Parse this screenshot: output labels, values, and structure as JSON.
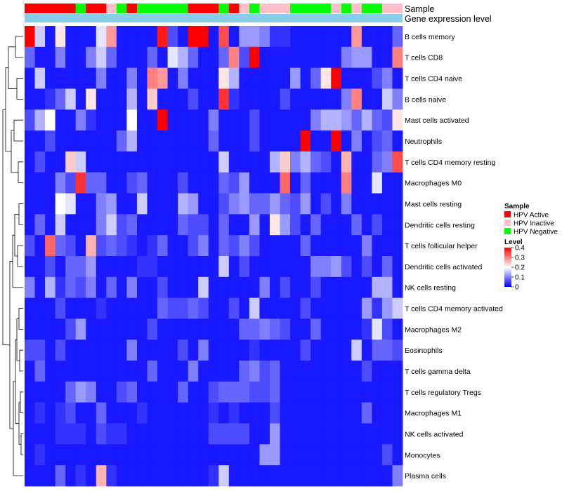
{
  "chart_data": {
    "type": "heatmap",
    "title": "",
    "value_range": [
      0,
      0.4
    ],
    "color_scale": {
      "low": "#0000FF",
      "mid": "#FFFFFF",
      "high": "#FF0000",
      "mid_value": 0.2
    },
    "annotation_tracks": [
      {
        "name": "Sample",
        "label": "Sample"
      },
      {
        "name": "Gene expression level",
        "label": "Gene expression level"
      }
    ],
    "sample_groups": [
      {
        "name": "HPV Active",
        "color": "#FF0000"
      },
      {
        "name": "HPV Inactive",
        "color": "#FFC0CB"
      },
      {
        "name": "HPV Negative",
        "color": "#00FF00"
      }
    ],
    "sample_annotation": [
      0,
      0,
      0,
      0,
      0,
      2,
      0,
      0,
      1,
      2,
      0,
      2,
      2,
      2,
      2,
      2,
      0,
      0,
      0,
      2,
      0,
      1,
      2,
      1,
      1,
      1,
      2,
      2,
      2,
      2,
      1,
      2,
      1,
      2,
      2,
      1,
      1
    ],
    "gene_expression_color": "#87CEEB",
    "legend": {
      "sample_title": "Sample",
      "level_title": "Level",
      "level_ticks": [
        "0.4",
        "0.3",
        "0.2",
        "0.1",
        "0"
      ]
    },
    "rows": [
      "B cells memory",
      "T cells CD8",
      "T cells CD4 naive",
      "B cells naive",
      "Mast cells activated",
      "Neutrophils",
      "T cells CD4 memory resting",
      "Macrophages M0",
      "Mast cells resting",
      "Dendritic cells resting",
      "T cells follicular helper",
      "Dendritic cells activated",
      "NK cells resting",
      "T cells CD4 memory activated",
      "Macrophages M2",
      "Eosinophils",
      "T cells gamma delta",
      "T cells regulatory  Tregs",
      "Macrophages M1",
      "NK cells activated",
      "Monocytes",
      "Plasma cells"
    ],
    "values": [
      [
        0.4,
        0.16,
        0.02,
        0.22,
        0.02,
        0.02,
        0.02,
        0.18,
        0.28,
        0.02,
        0.02,
        0.02,
        0.02,
        0.38,
        0.06,
        0.02,
        0.4,
        0.4,
        0.02,
        0.34,
        0.02,
        0.12,
        0.12,
        0.1,
        0.04,
        0.04,
        0.02,
        0.02,
        0.02,
        0.02,
        0.02,
        0.02,
        0.28,
        0.02,
        0.02,
        0.02,
        0.08
      ],
      [
        0.08,
        0.02,
        0.02,
        0.1,
        0.02,
        0.02,
        0.1,
        0.16,
        0.08,
        0.02,
        0.02,
        0.02,
        0.08,
        0.02,
        0.18,
        0.14,
        0.08,
        0.02,
        0.02,
        0.08,
        0.3,
        0.06,
        0.4,
        0.02,
        0.02,
        0.02,
        0.02,
        0.02,
        0.02,
        0.02,
        0.02,
        0.1,
        0.12,
        0.12,
        0.02,
        0.02,
        0.3
      ],
      [
        0.02,
        0.16,
        0.02,
        0.02,
        0.02,
        0.02,
        0.02,
        0.1,
        0.02,
        0.02,
        0.1,
        0.02,
        0.3,
        0.28,
        0.02,
        0.1,
        0.02,
        0.02,
        0.02,
        0.22,
        0.14,
        0.02,
        0.02,
        0.02,
        0.02,
        0.02,
        0.12,
        0.02,
        0.08,
        0.22,
        0.4,
        0.02,
        0.02,
        0.02,
        0.06,
        0.1,
        0.02
      ],
      [
        0.02,
        0.02,
        0.04,
        0.08,
        0.16,
        0.02,
        0.22,
        0.02,
        0.02,
        0.02,
        0.14,
        0.02,
        0.24,
        0.02,
        0.02,
        0.02,
        0.06,
        0.02,
        0.02,
        0.36,
        0.04,
        0.02,
        0.02,
        0.02,
        0.02,
        0.06,
        0.02,
        0.02,
        0.02,
        0.02,
        0.02,
        0.1,
        0.3,
        0.02,
        0.02,
        0.16,
        0.1
      ],
      [
        0.06,
        0.14,
        0.2,
        0.02,
        0.02,
        0.1,
        0.04,
        0.02,
        0.02,
        0.02,
        0.2,
        0.02,
        0.02,
        0.4,
        0.02,
        0.02,
        0.02,
        0.02,
        0.1,
        0.02,
        0.02,
        0.02,
        0.06,
        0.02,
        0.02,
        0.02,
        0.02,
        0.02,
        0.1,
        0.14,
        0.14,
        0.12,
        0.08,
        0.14,
        0.08,
        0.06,
        0.22
      ],
      [
        0.02,
        0.02,
        0.06,
        0.02,
        0.02,
        0.02,
        0.02,
        0.02,
        0.02,
        0.08,
        0.14,
        0.02,
        0.02,
        0.02,
        0.02,
        0.02,
        0.02,
        0.02,
        0.08,
        0.02,
        0.02,
        0.02,
        0.06,
        0.02,
        0.02,
        0.02,
        0.02,
        0.4,
        0.02,
        0.02,
        0.4,
        0.02,
        0.1,
        0.02,
        0.06,
        0.08,
        0.02
      ],
      [
        0.02,
        0.06,
        0.02,
        0.02,
        0.24,
        0.16,
        0.02,
        0.02,
        0.02,
        0.02,
        0.02,
        0.02,
        0.02,
        0.02,
        0.02,
        0.02,
        0.02,
        0.02,
        0.02,
        0.16,
        0.02,
        0.02,
        0.02,
        0.02,
        0.14,
        0.24,
        0.1,
        0.14,
        0.08,
        0.06,
        0.02,
        0.26,
        0.02,
        0.02,
        0.08,
        0.1,
        0.34
      ],
      [
        0.02,
        0.02,
        0.02,
        0.1,
        0.06,
        0.36,
        0.08,
        0.08,
        0.02,
        0.02,
        0.06,
        0.08,
        0.02,
        0.02,
        0.02,
        0.06,
        0.02,
        0.02,
        0.02,
        0.08,
        0.06,
        0.12,
        0.02,
        0.02,
        0.02,
        0.32,
        0.02,
        0.08,
        0.02,
        0.02,
        0.02,
        0.3,
        0.02,
        0.02,
        0.18,
        0.02,
        0.02
      ],
      [
        0.02,
        0.02,
        0.02,
        0.2,
        0.18,
        0.02,
        0.02,
        0.1,
        0.12,
        0.02,
        0.02,
        0.16,
        0.02,
        0.02,
        0.02,
        0.14,
        0.12,
        0.02,
        0.02,
        0.06,
        0.1,
        0.12,
        0.08,
        0.08,
        0.12,
        0.08,
        0.06,
        0.12,
        0.02,
        0.06,
        0.02,
        0.1,
        0.02,
        0.02,
        0.02,
        0.02,
        0.02
      ],
      [
        0.02,
        0.08,
        0.02,
        0.16,
        0.02,
        0.02,
        0.02,
        0.1,
        0.16,
        0.06,
        0.08,
        0.02,
        0.02,
        0.02,
        0.02,
        0.08,
        0.06,
        0.06,
        0.02,
        0.08,
        0.02,
        0.02,
        0.12,
        0.02,
        0.22,
        0.12,
        0.06,
        0.02,
        0.08,
        0.02,
        0.02,
        0.02,
        0.08,
        0.02,
        0.06,
        0.02,
        0.02
      ],
      [
        0.06,
        0.02,
        0.32,
        0.08,
        0.06,
        0.02,
        0.26,
        0.06,
        0.08,
        0.06,
        0.04,
        0.02,
        0.04,
        0.08,
        0.02,
        0.02,
        0.06,
        0.1,
        0.02,
        0.08,
        0.06,
        0.1,
        0.06,
        0.02,
        0.02,
        0.02,
        0.02,
        0.08,
        0.02,
        0.02,
        0.02,
        0.02,
        0.02,
        0.1,
        0.02,
        0.02,
        0.02
      ],
      [
        0.02,
        0.02,
        0.06,
        0.02,
        0.08,
        0.08,
        0.12,
        0.02,
        0.02,
        0.02,
        0.02,
        0.04,
        0.04,
        0.02,
        0.02,
        0.02,
        0.02,
        0.02,
        0.02,
        0.16,
        0.02,
        0.06,
        0.02,
        0.02,
        0.02,
        0.02,
        0.02,
        0.02,
        0.1,
        0.1,
        0.12,
        0.06,
        0.02,
        0.06,
        0.02,
        0.08,
        0.02
      ],
      [
        0.1,
        0.02,
        0.14,
        0.04,
        0.08,
        0.06,
        0.1,
        0.02,
        0.08,
        0.02,
        0.1,
        0.02,
        0.02,
        0.06,
        0.02,
        0.02,
        0.02,
        0.16,
        0.02,
        0.02,
        0.02,
        0.02,
        0.02,
        0.1,
        0.02,
        0.06,
        0.02,
        0.02,
        0.06,
        0.02,
        0.02,
        0.02,
        0.02,
        0.02,
        0.14,
        0.14,
        0.02
      ],
      [
        0.02,
        0.02,
        0.02,
        0.06,
        0.02,
        0.02,
        0.02,
        0.04,
        0.02,
        0.02,
        0.02,
        0.02,
        0.02,
        0.08,
        0.06,
        0.06,
        0.08,
        0.06,
        0.02,
        0.02,
        0.06,
        0.02,
        0.16,
        0.02,
        0.02,
        0.02,
        0.02,
        0.06,
        0.02,
        0.02,
        0.02,
        0.02,
        0.02,
        0.12,
        0.04,
        0.12,
        0.16
      ],
      [
        0.02,
        0.02,
        0.02,
        0.02,
        0.06,
        0.12,
        0.02,
        0.02,
        0.02,
        0.02,
        0.02,
        0.02,
        0.06,
        0.02,
        0.02,
        0.02,
        0.02,
        0.02,
        0.02,
        0.02,
        0.02,
        0.08,
        0.08,
        0.1,
        0.08,
        0.06,
        0.02,
        0.02,
        0.08,
        0.02,
        0.02,
        0.02,
        0.02,
        0.04,
        0.18,
        0.06,
        0.02
      ],
      [
        0.06,
        0.06,
        0.02,
        0.06,
        0.02,
        0.02,
        0.02,
        0.02,
        0.02,
        0.02,
        0.1,
        0.02,
        0.02,
        0.02,
        0.02,
        0.06,
        0.02,
        0.1,
        0.02,
        0.02,
        0.02,
        0.02,
        0.04,
        0.02,
        0.02,
        0.02,
        0.02,
        0.06,
        0.02,
        0.02,
        0.02,
        0.02,
        0.16,
        0.02,
        0.08,
        0.08,
        0.06
      ],
      [
        0.02,
        0.08,
        0.02,
        0.02,
        0.02,
        0.02,
        0.02,
        0.02,
        0.02,
        0.02,
        0.02,
        0.02,
        0.08,
        0.02,
        0.02,
        0.02,
        0.1,
        0.02,
        0.02,
        0.02,
        0.02,
        0.08,
        0.1,
        0.06,
        0.08,
        0.02,
        0.02,
        0.02,
        0.02,
        0.02,
        0.02,
        0.02,
        0.02,
        0.06,
        0.02,
        0.02,
        0.02
      ],
      [
        0.02,
        0.02,
        0.02,
        0.02,
        0.08,
        0.12,
        0.1,
        0.02,
        0.02,
        0.06,
        0.08,
        0.02,
        0.02,
        0.02,
        0.02,
        0.08,
        0.02,
        0.02,
        0.06,
        0.08,
        0.08,
        0.08,
        0.06,
        0.06,
        0.08,
        0.02,
        0.02,
        0.02,
        0.02,
        0.02,
        0.02,
        0.02,
        0.02,
        0.02,
        0.02,
        0.02,
        0.02
      ],
      [
        0.02,
        0.04,
        0.02,
        0.04,
        0.06,
        0.02,
        0.02,
        0.08,
        0.02,
        0.02,
        0.02,
        0.04,
        0.02,
        0.02,
        0.02,
        0.02,
        0.02,
        0.02,
        0.04,
        0.02,
        0.04,
        0.02,
        0.02,
        0.02,
        0.06,
        0.02,
        0.02,
        0.02,
        0.02,
        0.02,
        0.02,
        0.02,
        0.02,
        0.08,
        0.02,
        0.02,
        0.02
      ],
      [
        0.02,
        0.02,
        0.02,
        0.04,
        0.04,
        0.04,
        0.02,
        0.06,
        0.04,
        0.04,
        0.02,
        0.02,
        0.02,
        0.02,
        0.02,
        0.02,
        0.02,
        0.02,
        0.06,
        0.06,
        0.06,
        0.06,
        0.02,
        0.02,
        0.12,
        0.02,
        0.02,
        0.02,
        0.02,
        0.02,
        0.02,
        0.02,
        0.02,
        0.02,
        0.02,
        0.02,
        0.02
      ],
      [
        0.02,
        0.04,
        0.02,
        0.02,
        0.02,
        0.02,
        0.02,
        0.02,
        0.02,
        0.02,
        0.02,
        0.02,
        0.02,
        0.02,
        0.02,
        0.02,
        0.02,
        0.02,
        0.02,
        0.02,
        0.02,
        0.02,
        0.02,
        0.12,
        0.12,
        0.02,
        0.02,
        0.02,
        0.02,
        0.02,
        0.02,
        0.02,
        0.02,
        0.02,
        0.02,
        0.06,
        0.02
      ],
      [
        0.02,
        0.02,
        0.02,
        0.08,
        0.02,
        0.04,
        0.02,
        0.26,
        0.04,
        0.02,
        0.02,
        0.02,
        0.02,
        0.02,
        0.02,
        0.02,
        0.02,
        0.02,
        0.04,
        0.16,
        0.02,
        0.02,
        0.02,
        0.02,
        0.02,
        0.02,
        0.02,
        0.02,
        0.02,
        0.02,
        0.02,
        0.02,
        0.02,
        0.02,
        0.02,
        0.02,
        0.1
      ]
    ]
  }
}
